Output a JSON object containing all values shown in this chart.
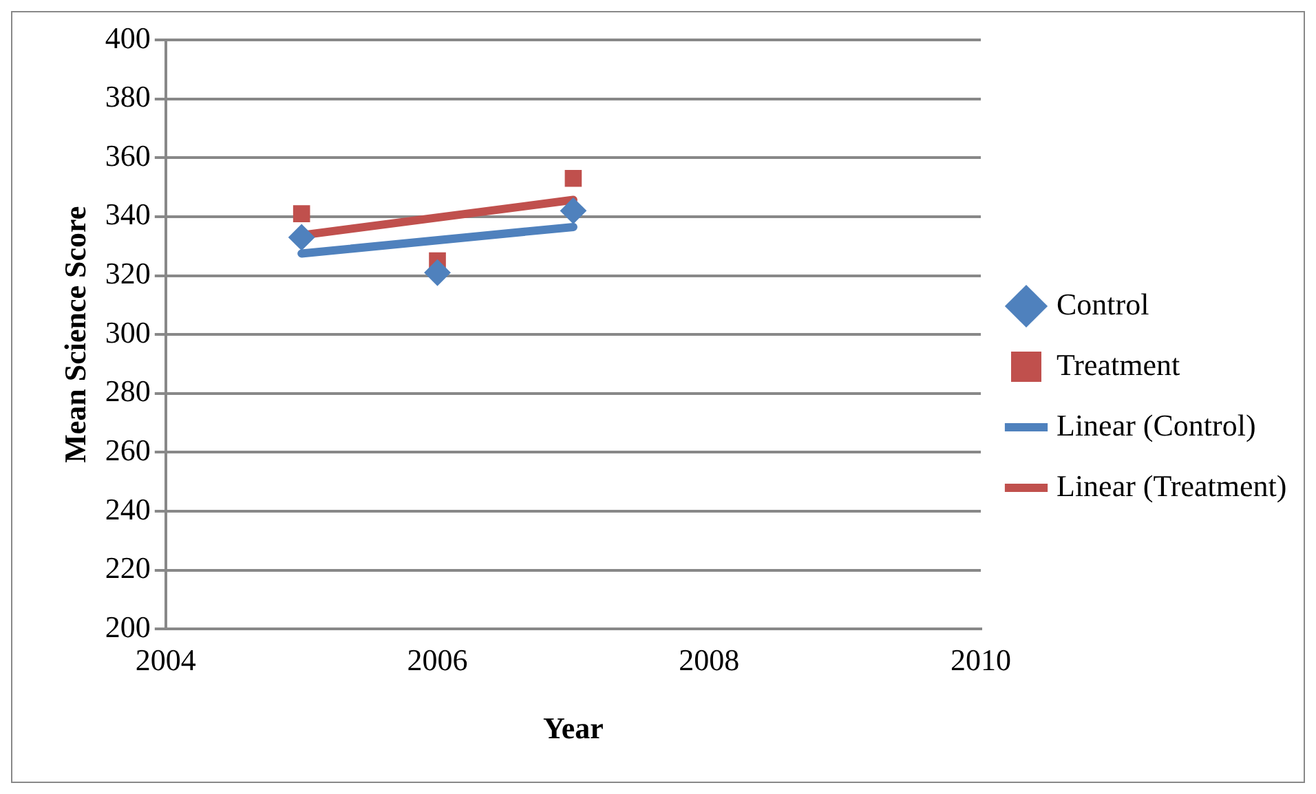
{
  "chart_data": {
    "type": "scatter",
    "xlabel": "Year",
    "ylabel": "Mean Science Score",
    "xlim": [
      2004,
      2010
    ],
    "xticks": [
      2004,
      2006,
      2008,
      2010
    ],
    "ylim": [
      200,
      400
    ],
    "yticks": [
      200,
      220,
      240,
      260,
      280,
      300,
      320,
      340,
      360,
      380,
      400
    ],
    "grid": "y",
    "legend": "right",
    "series": [
      {
        "name": "Control",
        "marker": "diamond",
        "color": "#4f81bd",
        "x": [
          2005,
          2006,
          2007
        ],
        "values": [
          333,
          321,
          342
        ]
      },
      {
        "name": "Treatment",
        "marker": "square",
        "color": "#c0504d",
        "x": [
          2005,
          2006,
          2007
        ],
        "values": [
          341,
          325,
          353
        ]
      },
      {
        "name": "Linear (Control)",
        "type": "line",
        "marker": "none",
        "color": "#4f81bd",
        "x": [
          2005,
          2007
        ],
        "values": [
          327.5,
          336.5
        ]
      },
      {
        "name": "Linear (Treatment)",
        "type": "line",
        "marker": "none",
        "color": "#c0504d",
        "x": [
          2005,
          2007
        ],
        "values": [
          333.7,
          345.7
        ]
      }
    ]
  }
}
